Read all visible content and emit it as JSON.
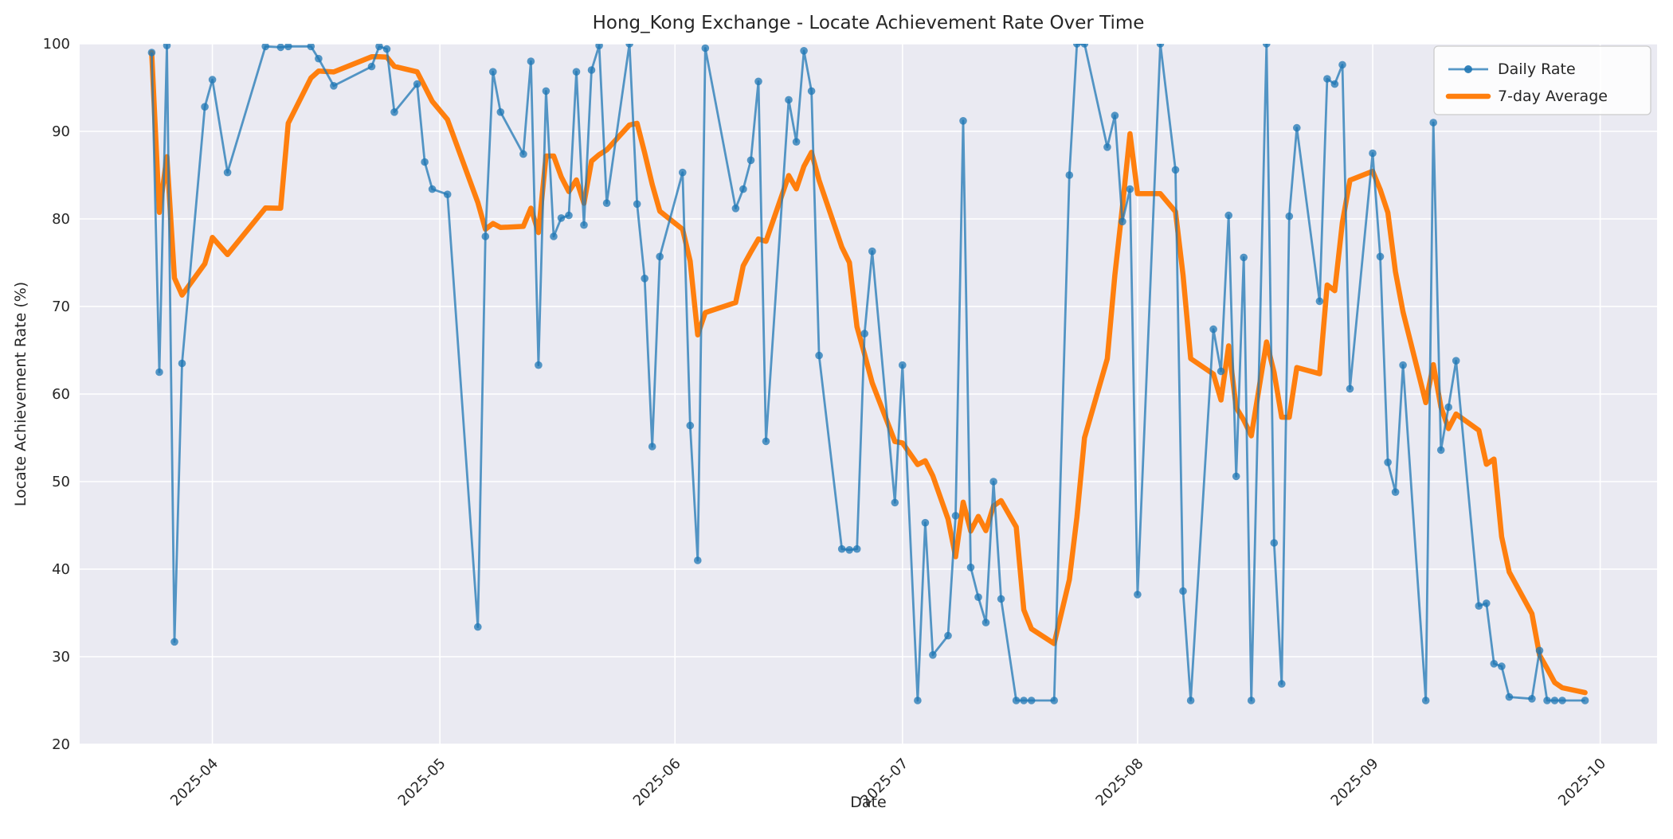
{
  "title": "Hong_Kong Exchange - Locate Achievement Rate Over Time",
  "colors": {
    "figure_background": "#ffffff",
    "axes_background": "#eaeaf2",
    "grid": "#ffffff",
    "daily_line": "#1f77b4",
    "average_line": "#ff7f0e",
    "text": "#262626",
    "legend_face": "#ffffff",
    "legend_edge": "#cccccc"
  },
  "chart_data": {
    "type": "line",
    "title": "Hong_Kong Exchange - Locate Achievement Rate Over Time",
    "xlabel": "Date",
    "ylabel": "Locate Achievement Rate (%)",
    "ylim": [
      20,
      100
    ],
    "yticks": [
      20,
      30,
      40,
      50,
      60,
      70,
      80,
      90,
      100
    ],
    "xlim": [
      "2025-03-14T12:00:00Z",
      "2025-10-08T12:00:00Z"
    ],
    "xticks": [
      {
        "date": "2025-04-01",
        "label": "2025-04"
      },
      {
        "date": "2025-05-01",
        "label": "2025-05"
      },
      {
        "date": "2025-06-01",
        "label": "2025-06"
      },
      {
        "date": "2025-07-01",
        "label": "2025-07"
      },
      {
        "date": "2025-08-01",
        "label": "2025-08"
      },
      {
        "date": "2025-09-01",
        "label": "2025-09"
      },
      {
        "date": "2025-10-01",
        "label": "2025-10"
      }
    ],
    "grid": true,
    "legend_position": "upper right",
    "series": [
      {
        "name": "Daily Rate",
        "color": "#1f77b4",
        "opacity": 0.75,
        "linewidth": 2.8,
        "marker": "circle",
        "marker_radius": 4.8,
        "dates": [
          "2025-03-24",
          "2025-03-25",
          "2025-03-26",
          "2025-03-27",
          "2025-03-28",
          "2025-03-31",
          "2025-04-01",
          "2025-04-03",
          "2025-04-08",
          "2025-04-10",
          "2025-04-11",
          "2025-04-14",
          "2025-04-15",
          "2025-04-17",
          "2025-04-22",
          "2025-04-23",
          "2025-04-24",
          "2025-04-25",
          "2025-04-28",
          "2025-04-29",
          "2025-04-30",
          "2025-05-02",
          "2025-05-06",
          "2025-05-07",
          "2025-05-08",
          "2025-05-09",
          "2025-05-12",
          "2025-05-13",
          "2025-05-14",
          "2025-05-15",
          "2025-05-16",
          "2025-05-17",
          "2025-05-18",
          "2025-05-19",
          "2025-05-20",
          "2025-05-21",
          "2025-05-22",
          "2025-05-23",
          "2025-05-26",
          "2025-05-27",
          "2025-05-28",
          "2025-05-29",
          "2025-05-30",
          "2025-06-02",
          "2025-06-03",
          "2025-06-04",
          "2025-06-05",
          "2025-06-09",
          "2025-06-10",
          "2025-06-11",
          "2025-06-12",
          "2025-06-13",
          "2025-06-16",
          "2025-06-17",
          "2025-06-18",
          "2025-06-19",
          "2025-06-20",
          "2025-06-23",
          "2025-06-24",
          "2025-06-25",
          "2025-06-26",
          "2025-06-27",
          "2025-06-30",
          "2025-07-01",
          "2025-07-03",
          "2025-07-04",
          "2025-07-05",
          "2025-07-07",
          "2025-07-08",
          "2025-07-09",
          "2025-07-10",
          "2025-07-11",
          "2025-07-12",
          "2025-07-13",
          "2025-07-14",
          "2025-07-16",
          "2025-07-17",
          "2025-07-18",
          "2025-07-21",
          "2025-07-23",
          "2025-07-24",
          "2025-07-25",
          "2025-07-28",
          "2025-07-29",
          "2025-07-30",
          "2025-07-31",
          "2025-08-01",
          "2025-08-04",
          "2025-08-06",
          "2025-08-07",
          "2025-08-08",
          "2025-08-11",
          "2025-08-12",
          "2025-08-13",
          "2025-08-14",
          "2025-08-15",
          "2025-08-16",
          "2025-08-18",
          "2025-08-19",
          "2025-08-20",
          "2025-08-21",
          "2025-08-22",
          "2025-08-25",
          "2025-08-26",
          "2025-08-27",
          "2025-08-28",
          "2025-08-29",
          "2025-09-01",
          "2025-09-02",
          "2025-09-03",
          "2025-09-04",
          "2025-09-05",
          "2025-09-08",
          "2025-09-09",
          "2025-09-10",
          "2025-09-11",
          "2025-09-12",
          "2025-09-15",
          "2025-09-16",
          "2025-09-17",
          "2025-09-18",
          "2025-09-19",
          "2025-09-22",
          "2025-09-23",
          "2025-09-24",
          "2025-09-25",
          "2025-09-26",
          "2025-09-29"
        ],
        "values": [
          99.0,
          62.5,
          99.8,
          31.7,
          63.5,
          92.8,
          95.9,
          85.3,
          99.7,
          99.6,
          99.7,
          99.7,
          98.3,
          95.2,
          97.4,
          99.7,
          99.4,
          92.2,
          95.4,
          86.5,
          83.4,
          82.8,
          33.4,
          78.0,
          96.8,
          92.2,
          87.4,
          98.0,
          63.3,
          94.6,
          78.0,
          80.1,
          80.4,
          96.8,
          79.3,
          97.0,
          99.8,
          81.8,
          100.0,
          81.7,
          73.2,
          54.0,
          75.7,
          85.3,
          56.4,
          41.0,
          99.5,
          81.2,
          83.4,
          86.7,
          95.7,
          54.6,
          93.6,
          88.8,
          99.2,
          94.6,
          64.4,
          42.3,
          42.2,
          42.3,
          66.9,
          76.3,
          47.6,
          63.3,
          25.0,
          45.3,
          30.2,
          32.4,
          46.1,
          91.2,
          40.2,
          36.8,
          33.9,
          50.0,
          36.6,
          25.0,
          25.0,
          25.0,
          25.0,
          85.0,
          100.0,
          100.0,
          88.2,
          91.8,
          79.7,
          83.4,
          37.1,
          100.0,
          85.6,
          37.5,
          25.0,
          67.4,
          62.6,
          80.4,
          50.6,
          75.6,
          25.0,
          100.0,
          43.0,
          26.9,
          80.3,
          90.4,
          70.6,
          96.0,
          95.4,
          97.6,
          60.6,
          87.5,
          75.7,
          52.2,
          48.8,
          63.3,
          25.0,
          91.0,
          53.6,
          58.5,
          63.8,
          35.8,
          36.1,
          29.2,
          28.9,
          25.4,
          25.2,
          30.7,
          25.0,
          25.0,
          25.0,
          25.0
        ]
      },
      {
        "name": "7-day Average",
        "color": "#ff7f0e",
        "opacity": 1.0,
        "linewidth": 6.5,
        "marker": "none",
        "derived": "rolling mean of Daily Rate over last 7 observations (min_periods=1)"
      }
    ]
  }
}
